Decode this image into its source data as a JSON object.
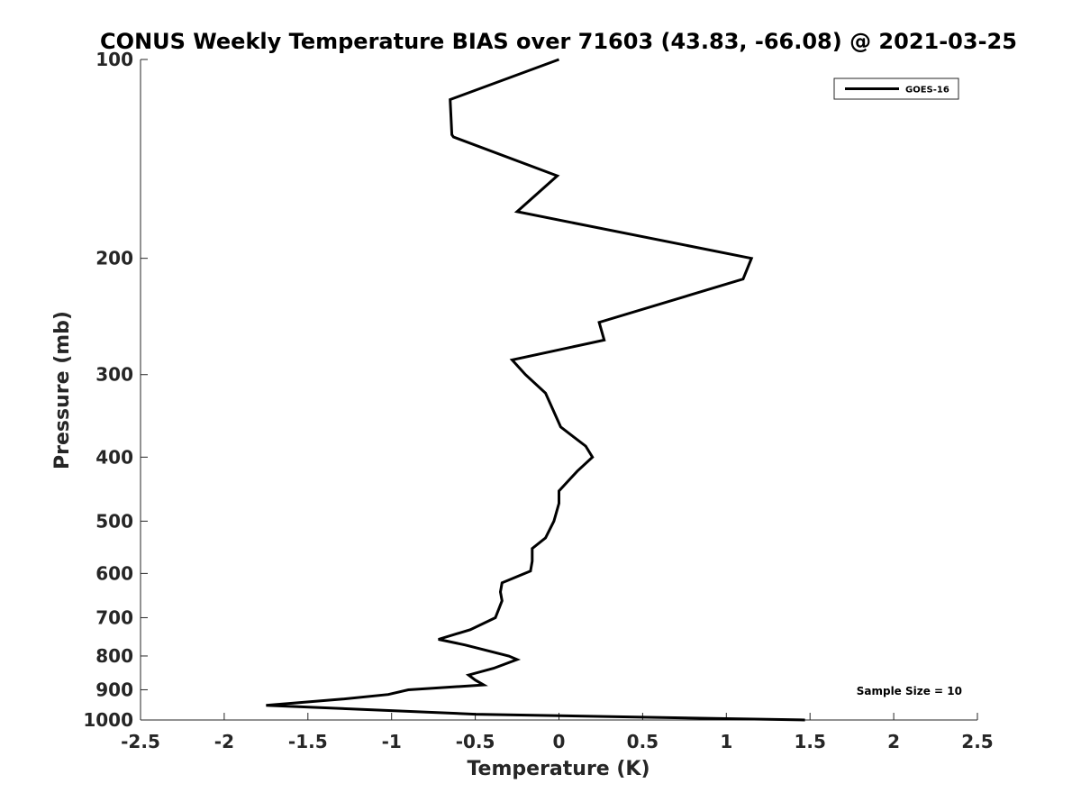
{
  "chart_data": {
    "type": "line",
    "title": "CONUS Weekly Temperature BIAS over 71603 (43.83, -66.08) @ 2021-03-25",
    "xlabel": "Temperature (K)",
    "ylabel": "Pressure (mb)",
    "xlim": [
      -2.5,
      2.5
    ],
    "ylim": [
      100,
      1000
    ],
    "y_scale": "log",
    "y_reversed": true,
    "x_ticks": [
      -2.5,
      -2,
      -1.5,
      -1,
      -0.5,
      0,
      0.5,
      1,
      1.5,
      2,
      2.5
    ],
    "x_tick_labels": [
      "-2.5",
      "-2",
      "-1.5",
      "-1",
      "-0.5",
      "0",
      "0.5",
      "1",
      "1.5",
      "2",
      "2.5"
    ],
    "y_ticks": [
      100,
      200,
      300,
      400,
      500,
      600,
      700,
      800,
      900,
      1000
    ],
    "y_tick_labels": [
      "100",
      "200",
      "300",
      "400",
      "500",
      "600",
      "700",
      "800",
      "900",
      "1000"
    ],
    "grid": false,
    "legend_position": "top-right",
    "series": [
      {
        "name": "GOES-16",
        "color": "#000000",
        "points": [
          {
            "x": 0.0,
            "y": 100
          },
          {
            "x": -0.65,
            "y": 115
          },
          {
            "x": -0.64,
            "y": 130
          },
          {
            "x": -0.63,
            "y": 131
          },
          {
            "x": -0.01,
            "y": 150
          },
          {
            "x": -0.25,
            "y": 170
          },
          {
            "x": 1.15,
            "y": 200
          },
          {
            "x": 1.1,
            "y": 215
          },
          {
            "x": 0.24,
            "y": 250
          },
          {
            "x": 0.27,
            "y": 266
          },
          {
            "x": -0.28,
            "y": 285
          },
          {
            "x": -0.2,
            "y": 300
          },
          {
            "x": -0.08,
            "y": 320
          },
          {
            "x": 0.01,
            "y": 360
          },
          {
            "x": 0.16,
            "y": 385
          },
          {
            "x": 0.2,
            "y": 400
          },
          {
            "x": 0.11,
            "y": 420
          },
          {
            "x": 0.0,
            "y": 450
          },
          {
            "x": 0.0,
            "y": 470
          },
          {
            "x": -0.03,
            "y": 500
          },
          {
            "x": -0.08,
            "y": 530
          },
          {
            "x": -0.16,
            "y": 550
          },
          {
            "x": -0.16,
            "y": 575
          },
          {
            "x": -0.17,
            "y": 595
          },
          {
            "x": -0.34,
            "y": 620
          },
          {
            "x": -0.35,
            "y": 640
          },
          {
            "x": -0.34,
            "y": 660
          },
          {
            "x": -0.38,
            "y": 700
          },
          {
            "x": -0.53,
            "y": 730
          },
          {
            "x": -0.72,
            "y": 755
          },
          {
            "x": -0.56,
            "y": 770
          },
          {
            "x": -0.3,
            "y": 800
          },
          {
            "x": -0.25,
            "y": 810
          },
          {
            "x": -0.39,
            "y": 835
          },
          {
            "x": -0.54,
            "y": 855
          },
          {
            "x": -0.5,
            "y": 870
          },
          {
            "x": -0.45,
            "y": 885
          },
          {
            "x": -0.9,
            "y": 900
          },
          {
            "x": -1.02,
            "y": 915
          },
          {
            "x": -1.3,
            "y": 930
          },
          {
            "x": -1.75,
            "y": 950
          },
          {
            "x": -0.5,
            "y": 980
          },
          {
            "x": 1.47,
            "y": 1000
          }
        ]
      }
    ],
    "annotation": "Sample Size = 10"
  }
}
